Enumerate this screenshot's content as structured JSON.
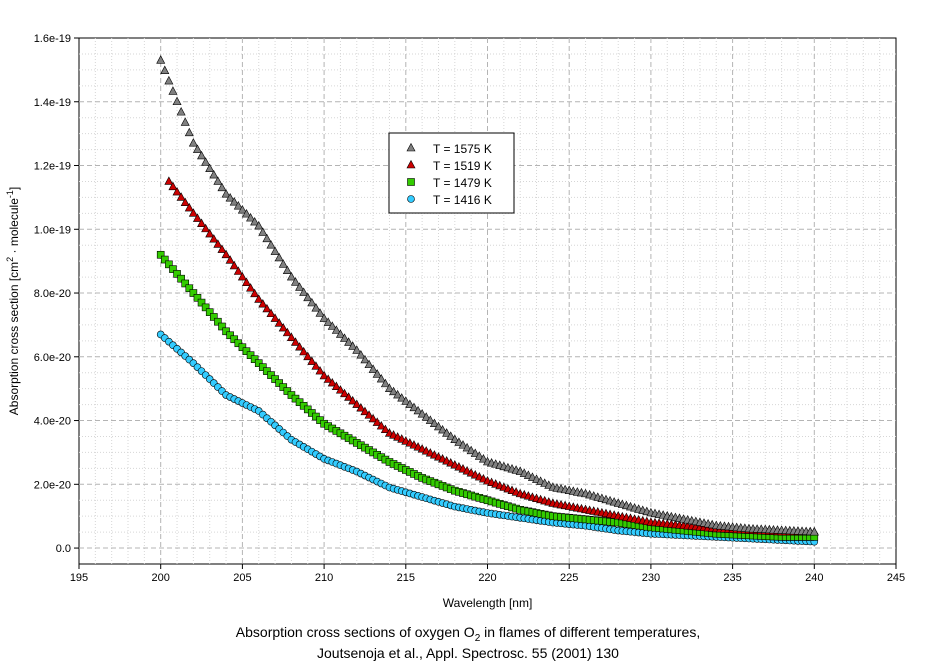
{
  "caption": {
    "line1_before": "Absorption cross sections of oxygen O",
    "line1_sub": "2",
    "line1_after": " in flames of different temperatures,",
    "line2": "Joutsenoja et al., Appl. Spectrosc. 55 (2001) 130"
  },
  "chart_data": {
    "type": "scatter",
    "xlabel": "Wavelength [nm]",
    "ylabel_parts": [
      "Absorption cross section [cm",
      "2",
      " · molecule",
      "-1",
      "]"
    ],
    "xlim": [
      195,
      245
    ],
    "ylim": [
      -0.5,
      16
    ],
    "y_scale_note": "values in units of 1e-20",
    "x_ticks": [
      195,
      200,
      205,
      210,
      215,
      220,
      225,
      230,
      235,
      240,
      245
    ],
    "x_tick_labels": [
      "195",
      "200",
      "205",
      "210",
      "215",
      "220",
      "225",
      "230",
      "235",
      "240",
      "245"
    ],
    "y_ticks": [
      0,
      2,
      4,
      6,
      8,
      10,
      12,
      14,
      16
    ],
    "y_tick_labels": [
      "0.0",
      "2.0e-20",
      "4.0e-20",
      "6.0e-20",
      "8.0e-20",
      "1.0e-19",
      "1.2e-19",
      "1.4e-19",
      "1.6e-19"
    ],
    "grid": true,
    "legend_position": "upper-center",
    "series": [
      {
        "name": "T = 1575 K",
        "marker": "triangle",
        "color": "#808080",
        "x": [
          200,
          202,
          204,
          206,
          208,
          210,
          212,
          214,
          216,
          218,
          220,
          222,
          224,
          226,
          228,
          230,
          232,
          234,
          236,
          238,
          240
        ],
        "y": [
          15.3,
          12.7,
          11.1,
          10.1,
          8.5,
          7.2,
          6.2,
          5.0,
          4.2,
          3.4,
          2.7,
          2.4,
          1.9,
          1.7,
          1.4,
          1.1,
          0.9,
          0.7,
          0.6,
          0.55,
          0.5
        ]
      },
      {
        "name": "T = 1519 K",
        "marker": "triangle",
        "color": "#cc0000",
        "x": [
          200.5,
          202,
          204,
          206,
          208,
          210,
          212,
          214,
          216,
          218,
          220,
          222,
          224,
          226,
          228,
          230,
          232,
          234,
          236,
          238,
          240
        ],
        "y": [
          11.5,
          10.5,
          9.2,
          7.8,
          6.6,
          5.4,
          4.5,
          3.6,
          3.1,
          2.6,
          2.1,
          1.7,
          1.4,
          1.2,
          1.0,
          0.8,
          0.7,
          0.6,
          0.55,
          0.5,
          0.5
        ]
      },
      {
        "name": "T = 1479 K",
        "marker": "square",
        "color": "#33cc00",
        "x": [
          200,
          202,
          204,
          206,
          208,
          210,
          212,
          214,
          216,
          218,
          220,
          222,
          224,
          226,
          228,
          230,
          232,
          234,
          236,
          238,
          240
        ],
        "y": [
          9.2,
          8.0,
          6.8,
          5.8,
          4.8,
          3.9,
          3.3,
          2.7,
          2.2,
          1.8,
          1.5,
          1.2,
          1.0,
          0.9,
          0.8,
          0.65,
          0.55,
          0.45,
          0.4,
          0.35,
          0.35
        ]
      },
      {
        "name": "T = 1416 K",
        "marker": "circle",
        "color": "#33ccff",
        "x": [
          200,
          202,
          204,
          206,
          208,
          210,
          212,
          214,
          216,
          218,
          220,
          222,
          224,
          226,
          228,
          230,
          232,
          234,
          236,
          238,
          240
        ],
        "y": [
          6.7,
          5.8,
          4.8,
          4.3,
          3.4,
          2.8,
          2.4,
          1.9,
          1.6,
          1.3,
          1.1,
          0.95,
          0.8,
          0.7,
          0.55,
          0.45,
          0.4,
          0.35,
          0.3,
          0.25,
          0.2
        ]
      }
    ]
  }
}
